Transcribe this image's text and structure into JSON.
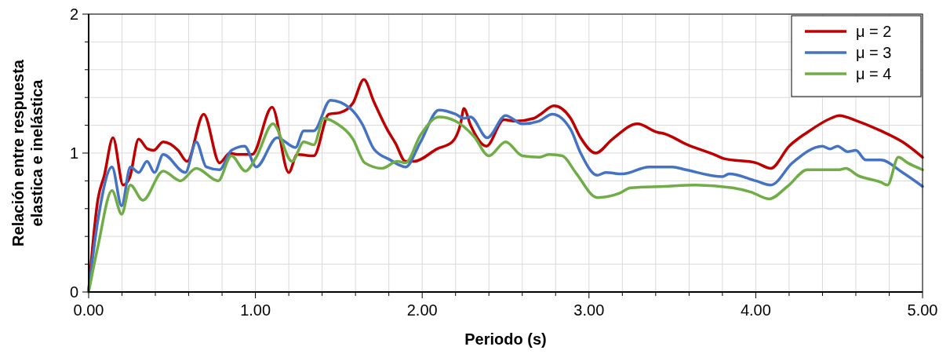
{
  "chart_data": {
    "type": "line",
    "xlabel": "Periodo (s)",
    "ylabel": "Relación entre respuesta\nelastica e inelástica",
    "xlim": [
      0,
      5
    ],
    "ylim": [
      0,
      2
    ],
    "xticks": [
      {
        "value": 0,
        "label": "0.00"
      },
      {
        "value": 0.2,
        "label": null
      },
      {
        "value": 0.4,
        "label": null
      },
      {
        "value": 0.6,
        "label": null
      },
      {
        "value": 0.8,
        "label": null
      },
      {
        "value": 1,
        "label": "1.00"
      },
      {
        "value": 1.2,
        "label": null
      },
      {
        "value": 1.4,
        "label": null
      },
      {
        "value": 1.6,
        "label": null
      },
      {
        "value": 1.8,
        "label": null
      },
      {
        "value": 2,
        "label": "2.00"
      },
      {
        "value": 2.2,
        "label": null
      },
      {
        "value": 2.4,
        "label": null
      },
      {
        "value": 2.6,
        "label": null
      },
      {
        "value": 2.8,
        "label": null
      },
      {
        "value": 3,
        "label": "3.00"
      },
      {
        "value": 3.2,
        "label": null
      },
      {
        "value": 3.4,
        "label": null
      },
      {
        "value": 3.6,
        "label": null
      },
      {
        "value": 3.8,
        "label": null
      },
      {
        "value": 4,
        "label": "4.00"
      },
      {
        "value": 4.2,
        "label": null
      },
      {
        "value": 4.4,
        "label": null
      },
      {
        "value": 4.6,
        "label": null
      },
      {
        "value": 4.8,
        "label": null
      },
      {
        "value": 5,
        "label": "5.00"
      }
    ],
    "yticks": [
      0,
      {
        "value": 0.2,
        "label": null
      },
      {
        "value": 0.4,
        "label": null
      },
      {
        "value": 0.6,
        "label": null
      },
      {
        "value": 0.8,
        "label": null
      },
      1,
      {
        "value": 1.2,
        "label": null
      },
      {
        "value": 1.4,
        "label": null
      },
      {
        "value": 1.6,
        "label": null
      },
      {
        "value": 1.8,
        "label": null
      },
      2
    ],
    "grid": true,
    "legend": "top right",
    "line_style": "solid",
    "series": [
      {
        "name": "μ = 2",
        "color": "#c00000",
        "x": [
          0,
          0.056,
          0.094,
          0.146,
          0.207,
          0.245,
          0.3,
          0.353,
          0.39,
          0.447,
          0.536,
          0.59,
          0.69,
          0.785,
          0.847,
          0.89,
          0.98,
          1.1,
          1.2,
          1.25,
          1.35,
          1.44,
          1.505,
          1.585,
          1.65,
          1.71,
          1.79,
          1.84,
          1.9,
          1.95,
          2.09,
          2.18,
          2.23,
          2.25,
          2.29,
          2.385,
          2.49,
          2.56,
          2.67,
          2.71,
          2.79,
          2.89,
          2.95,
          3.04,
          3.14,
          3.29,
          3.41,
          3.45,
          3.59,
          3.75,
          3.81,
          4,
          4.09,
          4.2,
          4.31,
          4.45,
          4.5,
          4.61,
          4.75,
          4.88,
          5
        ],
        "values": [
          0.01,
          0.67,
          0.84,
          1.11,
          0.77,
          0.82,
          1.1,
          1.03,
          1.02,
          1.08,
          1.02,
          0.94,
          1.28,
          0.93,
          1,
          0.99,
          0.99,
          1.33,
          0.86,
          0.99,
          0.98,
          1.28,
          1.29,
          1.36,
          1.53,
          1.37,
          1.17,
          1.07,
          0.94,
          0.94,
          1.03,
          1.08,
          1.21,
          1.32,
          1.2,
          1.05,
          1.24,
          1.23,
          1.25,
          1.28,
          1.34,
          1.25,
          1.11,
          1,
          1.1,
          1.21,
          1.15,
          1.14,
          1.06,
          0.99,
          0.96,
          0.93,
          0.89,
          1.05,
          1.15,
          1.25,
          1.27,
          1.23,
          1.16,
          1.08,
          0.97
        ]
      },
      {
        "name": "μ = 3",
        "color": "#4472c4",
        "x": [
          0,
          0.056,
          0.14,
          0.198,
          0.25,
          0.3,
          0.35,
          0.395,
          0.447,
          0.58,
          0.645,
          0.705,
          0.785,
          0.856,
          0.935,
          1.005,
          1.13,
          1.24,
          1.29,
          1.35,
          1.45,
          1.57,
          1.64,
          1.71,
          1.81,
          1.9,
          1.99,
          2.1,
          2.2,
          2.25,
          2.29,
          2.39,
          2.5,
          2.6,
          2.7,
          2.78,
          2.89,
          2.95,
          3.05,
          3.1,
          3.2,
          3.36,
          3.5,
          3.58,
          3.8,
          3.84,
          4,
          4.09,
          4.22,
          4.4,
          4.445,
          4.49,
          4.55,
          4.6,
          4.66,
          4.75,
          4.88,
          5
        ],
        "values": [
          0.01,
          0.52,
          0.9,
          0.62,
          0.9,
          0.86,
          0.94,
          0.86,
          0.99,
          0.86,
          1.08,
          0.9,
          0.88,
          1.02,
          1.05,
          0.9,
          1.11,
          1.04,
          1.16,
          1.16,
          1.38,
          1.32,
          1.21,
          1.03,
          0.95,
          0.9,
          1.08,
          1.31,
          1.28,
          1.25,
          1.26,
          1.11,
          1.27,
          1.21,
          1.23,
          1.28,
          1.17,
          1,
          0.84,
          0.86,
          0.85,
          0.9,
          0.9,
          0.88,
          0.83,
          0.85,
          0.8,
          0.77,
          0.93,
          1.05,
          1.03,
          1.05,
          1.01,
          1.02,
          0.95,
          0.95,
          0.86,
          0.76
        ]
      },
      {
        "name": "μ = 4",
        "color": "#70ad47",
        "x": [
          0,
          0.056,
          0.14,
          0.198,
          0.25,
          0.325,
          0.447,
          0.55,
          0.645,
          0.776,
          0.856,
          0.94,
          1.005,
          1.105,
          1.22,
          1.29,
          1.35,
          1.41,
          1.49,
          1.585,
          1.655,
          1.76,
          1.85,
          1.9,
          1.99,
          2.1,
          2.2,
          2.31,
          2.4,
          2.5,
          2.6,
          2.7,
          2.76,
          2.84,
          2.92,
          3.05,
          3.18,
          3.25,
          3.45,
          3.64,
          3.86,
          3.97,
          4.08,
          4.19,
          4.31,
          4.5,
          4.54,
          4.61,
          4.75,
          4.79,
          4.855,
          4.91,
          5
        ],
        "values": [
          0,
          0.33,
          0.73,
          0.56,
          0.77,
          0.66,
          0.87,
          0.8,
          0.89,
          0.8,
          0.98,
          0.87,
          0.97,
          1.21,
          0.94,
          1.08,
          1.06,
          1.25,
          1.21,
          1.1,
          0.93,
          0.89,
          0.94,
          0.93,
          1.13,
          1.26,
          1.23,
          1.12,
          0.98,
          1.08,
          0.98,
          0.97,
          0.99,
          0.98,
          0.86,
          0.68,
          0.71,
          0.75,
          0.76,
          0.77,
          0.75,
          0.72,
          0.67,
          0.76,
          0.88,
          0.88,
          0.89,
          0.84,
          0.79,
          0.77,
          0.97,
          0.93,
          0.88
        ]
      }
    ]
  }
}
